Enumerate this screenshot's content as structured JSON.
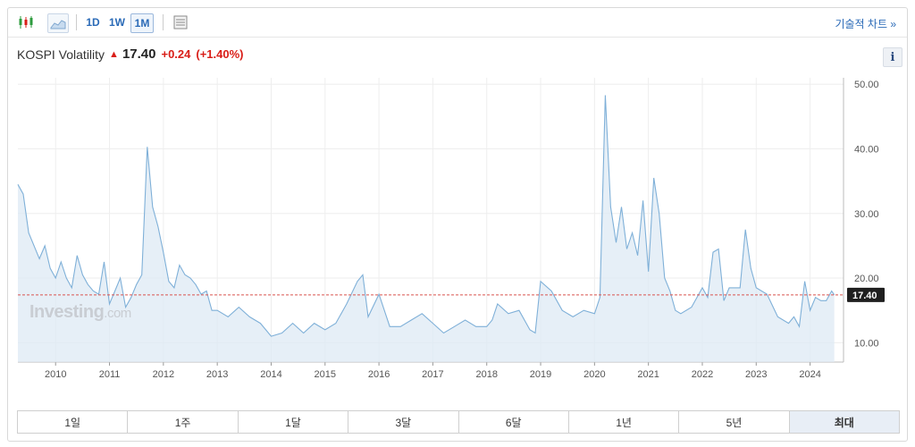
{
  "toolbar": {
    "intervals": [
      "1D",
      "1W",
      "1M"
    ],
    "active_interval": "1M",
    "tech_chart_link": "기술적 차트 »"
  },
  "quote": {
    "name": "KOSPI Volatility",
    "price": "17.40",
    "change": "+0.24",
    "change_pct": "(+1.40%)",
    "direction": "up"
  },
  "info_button": "i",
  "watermark": {
    "brand": "Investing",
    "suffix": ".com"
  },
  "range_tabs": [
    "1일",
    "1주",
    "1달",
    "3달",
    "6달",
    "1년",
    "5년",
    "최대"
  ],
  "active_range": "최대",
  "colors": {
    "line": "#7fb0d8",
    "area": "#dde9f4",
    "down": "#d91e18",
    "ref_line": "#d9534f",
    "price_label_bg": "#1f1f1f"
  },
  "chart_data": {
    "type": "area",
    "ylim": [
      7,
      51
    ],
    "y_ticks": [
      "10.00",
      "20.00",
      "30.00",
      "40.00",
      "50.00"
    ],
    "x_tick_labels": [
      "2010",
      "2011",
      "2012",
      "2013",
      "2014",
      "2015",
      "2016",
      "2017",
      "2018",
      "2019",
      "2020",
      "2021",
      "2022",
      "2023",
      "2024"
    ],
    "last_value": "17.40",
    "x": [
      2009.3,
      2009.4,
      2009.5,
      2009.6,
      2009.7,
      2009.8,
      2009.9,
      2010.0,
      2010.1,
      2010.2,
      2010.3,
      2010.4,
      2010.5,
      2010.6,
      2010.7,
      2010.8,
      2010.9,
      2011.0,
      2011.1,
      2011.2,
      2011.3,
      2011.4,
      2011.5,
      2011.6,
      2011.7,
      2011.8,
      2011.9,
      2012.0,
      2012.1,
      2012.2,
      2012.3,
      2012.4,
      2012.5,
      2012.6,
      2012.7,
      2012.8,
      2012.9,
      2013.0,
      2013.2,
      2013.4,
      2013.6,
      2013.8,
      2014.0,
      2014.2,
      2014.4,
      2014.6,
      2014.8,
      2015.0,
      2015.2,
      2015.4,
      2015.6,
      2015.7,
      2015.8,
      2016.0,
      2016.2,
      2016.4,
      2016.6,
      2016.8,
      2017.0,
      2017.2,
      2017.4,
      2017.6,
      2017.8,
      2018.0,
      2018.1,
      2018.2,
      2018.4,
      2018.6,
      2018.8,
      2018.9,
      2019.0,
      2019.2,
      2019.4,
      2019.6,
      2019.8,
      2020.0,
      2020.1,
      2020.2,
      2020.3,
      2020.4,
      2020.5,
      2020.6,
      2020.7,
      2020.8,
      2020.9,
      2021.0,
      2021.1,
      2021.2,
      2021.3,
      2021.4,
      2021.5,
      2021.6,
      2021.8,
      2022.0,
      2022.1,
      2022.2,
      2022.3,
      2022.4,
      2022.5,
      2022.6,
      2022.7,
      2022.8,
      2022.9,
      2023.0,
      2023.1,
      2023.2,
      2023.4,
      2023.6,
      2023.7,
      2023.8,
      2023.9,
      2024.0,
      2024.1,
      2024.2,
      2024.3,
      2024.4,
      2024.45
    ],
    "y": [
      34.5,
      33,
      27,
      25,
      23,
      25,
      21.5,
      20,
      22.5,
      20,
      18.5,
      23.5,
      20.5,
      19,
      18,
      17.5,
      22.5,
      16,
      18,
      20,
      15.5,
      17,
      19,
      20.5,
      40.3,
      31,
      28,
      24,
      19.5,
      18.5,
      22,
      20.5,
      20,
      19,
      17.5,
      18,
      15,
      15,
      14,
      15.5,
      14,
      13,
      11,
      11.5,
      13,
      11.5,
      13,
      12,
      13,
      16,
      19.5,
      20.5,
      14,
      17.5,
      12.5,
      12.5,
      13.5,
      14.5,
      13,
      11.5,
      12.5,
      13.5,
      12.5,
      12.5,
      13.5,
      16,
      14.5,
      15,
      12,
      11.5,
      19.5,
      18,
      15,
      14,
      15,
      14.5,
      17,
      48.3,
      31,
      25.5,
      31,
      24.5,
      27,
      23.5,
      32,
      21,
      35.5,
      30,
      20,
      18,
      15,
      14.5,
      15.5,
      18.5,
      17,
      24,
      24.5,
      16.5,
      18.5,
      18.5,
      18.5,
      27.5,
      21.5,
      18.5,
      18,
      17.5,
      14,
      13,
      14,
      12.5,
      19.5,
      15,
      17,
      16.5,
      16.5,
      18,
      17.4
    ]
  }
}
